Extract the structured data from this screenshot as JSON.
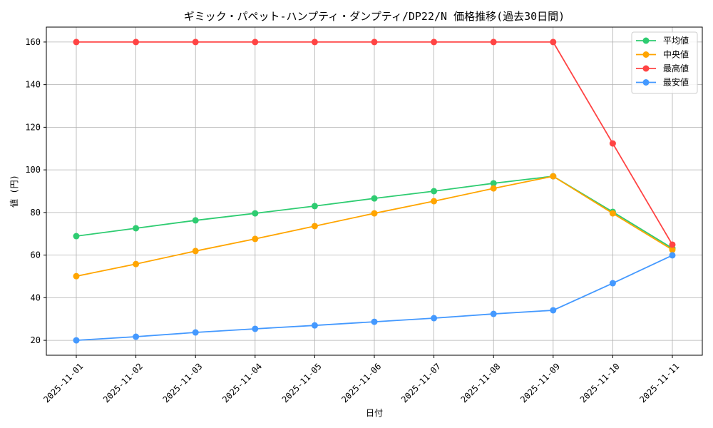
{
  "chart_data": {
    "type": "line",
    "title": "ギミック・パペット-ハンプティ・ダンプティ/DP22/N 価格推移(過去30日間)",
    "xlabel": "日付",
    "ylabel": "値 (円)",
    "x": [
      "2025-11-01",
      "2025-11-02",
      "2025-11-03",
      "2025-11-04",
      "2025-11-05",
      "2025-11-06",
      "2025-11-07",
      "2025-11-08",
      "2025-11-09",
      "2025-11-10",
      "2025-11-11"
    ],
    "ylim": [
      13,
      167
    ],
    "yticks": [
      20,
      40,
      60,
      80,
      100,
      120,
      140,
      160
    ],
    "grid": true,
    "legend_position": "top-right",
    "series": [
      {
        "name": "平均値",
        "color": "#2ecc71",
        "values": [
          68.9,
          72.6,
          76.3,
          79.6,
          83.0,
          86.6,
          90.0,
          93.7,
          97.0,
          80.3,
          63.2
        ]
      },
      {
        "name": "中央値",
        "color": "#ffa500",
        "values": [
          50.1,
          55.8,
          61.9,
          67.6,
          73.6,
          79.6,
          85.3,
          91.3,
          97.0,
          79.6,
          62.5
        ]
      },
      {
        "name": "最高値",
        "color": "#ff4444",
        "values": [
          160,
          160,
          160,
          160,
          160,
          160,
          160,
          160,
          160,
          112.4,
          64.9
        ]
      },
      {
        "name": "最安値",
        "color": "#4499ff",
        "values": [
          20.0,
          21.7,
          23.7,
          25.4,
          27.0,
          28.7,
          30.4,
          32.4,
          34.1,
          46.8,
          59.9
        ]
      }
    ]
  }
}
